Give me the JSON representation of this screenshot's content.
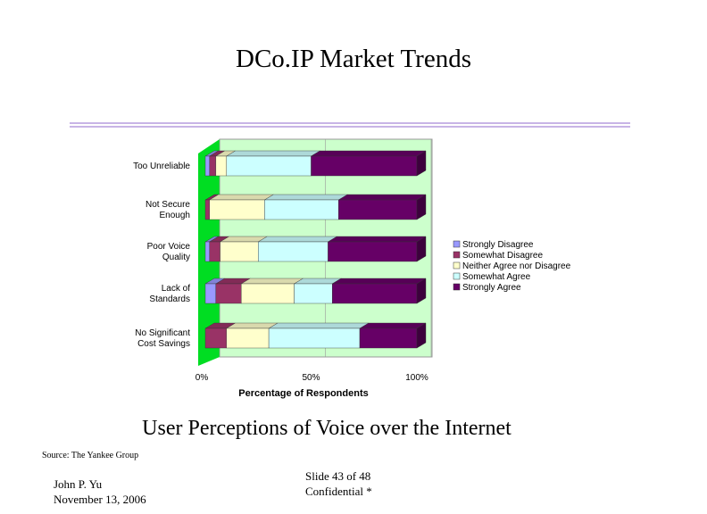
{
  "slide": {
    "title": "DCo.IP Market Trends",
    "subtitle": "User Perceptions of Voice over the Internet",
    "source": "Source: The Yankee Group",
    "author": "John P. Yu",
    "date": "November 13, 2006",
    "slide_number": "Slide 43 of 48",
    "confidential": "Confidential *"
  },
  "colors": {
    "rule": "#c8b4e6",
    "plot_background": "#ccffcc",
    "left_wall": "#00dd22",
    "strongly_disagree": "#9999ff",
    "somewhat_disagree": "#993366",
    "neither": "#ffffcc",
    "somewhat_agree": "#ccffff",
    "strongly_agree": "#660066"
  },
  "chart_data": {
    "type": "bar",
    "orientation": "horizontal",
    "stacked": "percent",
    "xlabel": "Percentage of Respondents",
    "x_ticks": [
      "0%",
      "50%",
      "100%"
    ],
    "xlim": [
      0,
      100
    ],
    "legend_position": "right",
    "categories": [
      "Too Unreliable",
      "Not Secure Enough",
      "Poor Voice Quality",
      "Lack of Standards",
      "No Significant Cost Savings"
    ],
    "category_lines": [
      [
        "Too Unreliable"
      ],
      [
        "Not Secure",
        "Enough"
      ],
      [
        "Poor Voice",
        "Quality"
      ],
      [
        "Lack of",
        "Standards"
      ],
      [
        "No Significant",
        "Cost Savings"
      ]
    ],
    "series": [
      {
        "name": "Strongly Disagree",
        "color": "#9999ff",
        "values": [
          2,
          0,
          2,
          5,
          0
        ]
      },
      {
        "name": "Somewhat Disagree",
        "color": "#993366",
        "values": [
          3,
          2,
          5,
          12,
          10
        ]
      },
      {
        "name": "Neither Agree nor Disagree",
        "color": "#ffffcc",
        "values": [
          5,
          26,
          18,
          25,
          20
        ]
      },
      {
        "name": "Somewhat Agree",
        "color": "#ccffff",
        "values": [
          40,
          35,
          33,
          18,
          43
        ]
      },
      {
        "name": "Strongly Agree",
        "color": "#660066",
        "values": [
          50,
          37,
          42,
          40,
          27
        ]
      }
    ]
  }
}
